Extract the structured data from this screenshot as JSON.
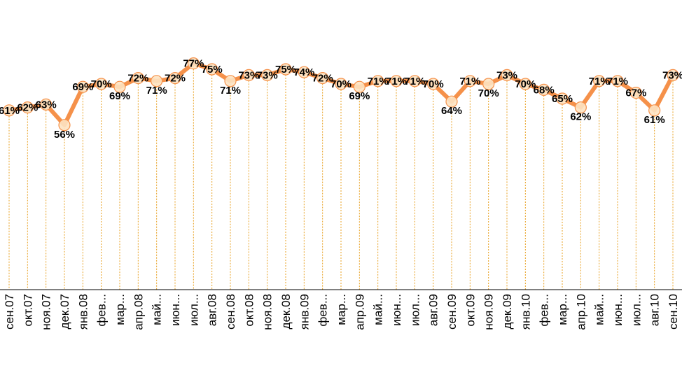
{
  "chart_data": {
    "type": "line",
    "ylim": [
      0,
      100
    ],
    "line_color": "#F5914A",
    "marker_fill": "#FDE3C2",
    "marker_stroke": "#F5914A",
    "guide_color": "#E8A020",
    "axis_color": "#000000",
    "categories": [
      "сен.07",
      "окт.07",
      "ноя.07",
      "дек.07",
      "янв.08",
      "фев...",
      "мар...",
      "апр.08",
      "май...",
      "июн...",
      "июл...",
      "авг.08",
      "сен.08",
      "окт.08",
      "ноя.08",
      "дек.08",
      "янв.09",
      "фев...",
      "мар...",
      "апр.09",
      "май...",
      "июн...",
      "июл...",
      "авг.09",
      "сен.09",
      "окт.09",
      "ноя.09",
      "дек.09",
      "янв.10",
      "фев...",
      "мар...",
      "апр.10",
      "май...",
      "июн...",
      "июл...",
      "авг.10",
      "сен.10"
    ],
    "values": [
      61,
      62,
      63,
      56,
      69,
      70,
      69,
      72,
      71,
      72,
      77,
      75,
      71,
      73,
      73,
      75,
      74,
      72,
      70,
      69,
      71,
      71,
      71,
      70,
      64,
      71,
      70,
      73,
      70,
      68,
      65,
      62,
      71,
      71,
      67,
      61,
      73
    ],
    "data_labels": [
      "61%",
      "62%",
      "63%",
      "56%",
      "69%",
      "70%",
      "69%",
      "72%",
      "71%",
      "72%",
      "77%",
      "75%",
      "71%",
      "73%",
      "73%",
      "75%",
      "74%",
      "72%",
      "70%",
      "69%",
      "71%",
      "71%",
      "71%",
      "70%",
      "64%",
      "71%",
      "70%",
      "73%",
      "70%",
      "68%",
      "65%",
      "62%",
      "71%",
      "71%",
      "67%",
      "61%",
      "73%"
    ]
  }
}
